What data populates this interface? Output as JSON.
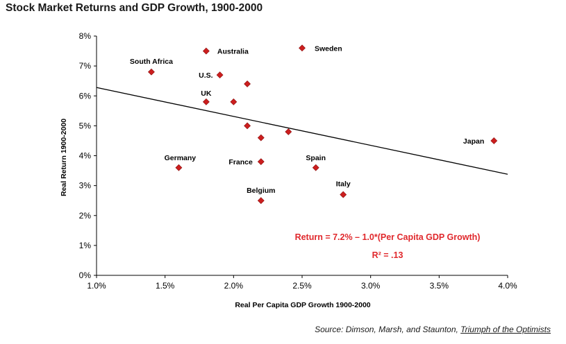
{
  "title": "Stock Market Returns and GDP Growth, 1900-2000",
  "source": {
    "prefix": "Source:  Dimson, Marsh, and Staunton, ",
    "book": "Triumph of the Optimists"
  },
  "equation": {
    "line1": "Return = 7.2% – 1.0*(Per Capita GDP Growth)",
    "line2": "R² = .13"
  },
  "colors": {
    "marker": "#cc1e1e",
    "equation": "#e0282c",
    "trendline": "#000000"
  },
  "chart_data": {
    "type": "scatter",
    "title": "Stock Market Returns and GDP Growth, 1900-2000",
    "xlabel": "Real Per Capita GDP Growth 1900-2000",
    "ylabel": "Real Return 1900-2000",
    "xlim": [
      1.0,
      4.0
    ],
    "ylim": [
      0,
      8
    ],
    "x_ticks": [
      "1.0%",
      "1.5%",
      "2.0%",
      "2.5%",
      "3.0%",
      "3.5%",
      "4.0%"
    ],
    "y_ticks": [
      "0%",
      "1%",
      "2%",
      "3%",
      "4%",
      "5%",
      "6%",
      "7%",
      "8%"
    ],
    "grid": false,
    "points": [
      {
        "label": "South Africa",
        "x": 1.4,
        "y": 6.8
      },
      {
        "label": "Australia",
        "x": 1.8,
        "y": 7.5
      },
      {
        "label": "U.S.",
        "x": 1.9,
        "y": 6.7
      },
      {
        "label": "",
        "x": 2.1,
        "y": 6.4
      },
      {
        "label": "UK",
        "x": 1.8,
        "y": 5.8
      },
      {
        "label": "",
        "x": 2.0,
        "y": 5.8
      },
      {
        "label": "Sweden",
        "x": 2.5,
        "y": 7.6
      },
      {
        "label": "",
        "x": 2.1,
        "y": 5.0
      },
      {
        "label": "",
        "x": 2.2,
        "y": 4.6
      },
      {
        "label": "",
        "x": 2.4,
        "y": 4.8
      },
      {
        "label": "Japan",
        "x": 3.9,
        "y": 4.5
      },
      {
        "label": "Germany",
        "x": 1.6,
        "y": 3.6
      },
      {
        "label": "France",
        "x": 2.2,
        "y": 3.8
      },
      {
        "label": "Spain",
        "x": 2.6,
        "y": 3.6
      },
      {
        "label": "Italy",
        "x": 2.8,
        "y": 2.7
      },
      {
        "label": "Belgium",
        "x": 2.2,
        "y": 2.5
      }
    ],
    "trendline": {
      "x": [
        1.0,
        4.0
      ],
      "y": [
        6.28,
        3.38
      ]
    }
  }
}
